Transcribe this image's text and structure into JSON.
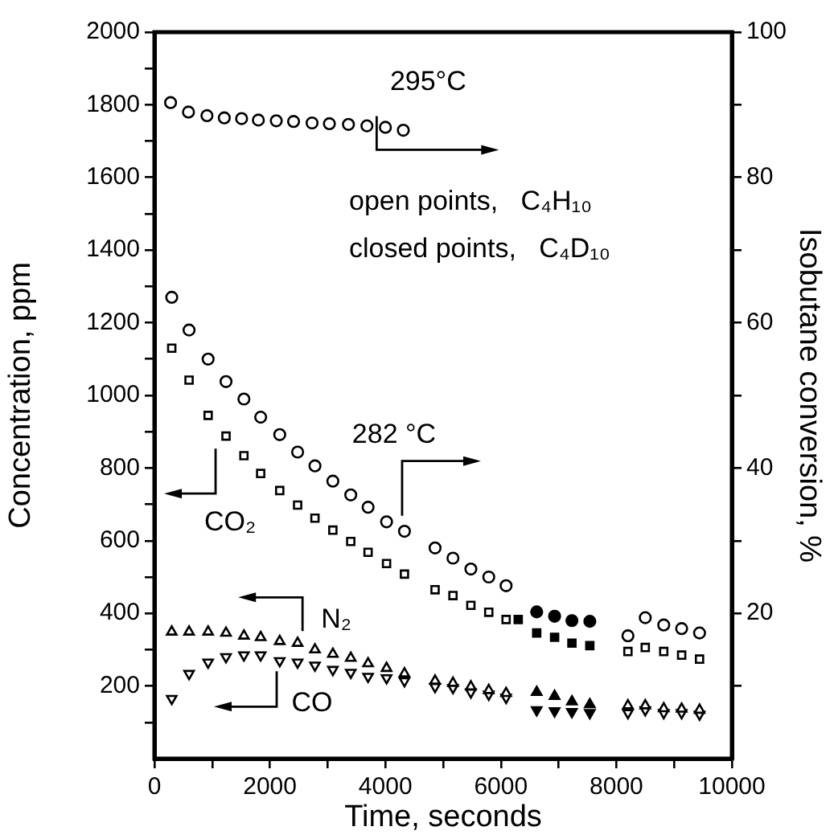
{
  "chart_data": {
    "type": "scatter",
    "xlabel": "Time, seconds",
    "ylabel": "Concentration, ppm",
    "y2label": "Isobutane conversion, %",
    "xlim": [
      0,
      10000
    ],
    "xticks": [
      0,
      {
        "value": 1000,
        "label": null
      },
      2000,
      {
        "value": 3000,
        "label": null
      },
      4000,
      {
        "value": 5000,
        "label": null
      },
      6000,
      {
        "value": 7000,
        "label": null
      },
      8000,
      {
        "value": 9000,
        "label": null
      },
      10000
    ],
    "ylim": [
      0,
      2000
    ],
    "yticks": [
      {
        "value": 100,
        "label": null
      },
      200,
      {
        "value": 300,
        "label": null
      },
      400,
      {
        "value": 500,
        "label": null
      },
      600,
      {
        "value": 700,
        "label": null
      },
      800,
      {
        "value": 900,
        "label": null
      },
      1000,
      {
        "value": 1100,
        "label": null
      },
      1200,
      {
        "value": 1300,
        "label": null
      },
      1400,
      {
        "value": 1500,
        "label": null
      },
      1600,
      {
        "value": 1700,
        "label": null
      },
      1800,
      {
        "value": 1900,
        "label": null
      },
      2000
    ],
    "y2lim": [
      0,
      100
    ],
    "y2ticks": [
      {
        "value": 10,
        "label": null
      },
      20,
      {
        "value": 30,
        "label": null
      },
      40,
      {
        "value": 50,
        "label": null
      },
      60,
      {
        "value": 70,
        "label": null
      },
      80,
      {
        "value": 90,
        "label": null
      },
      100
    ],
    "grid": false,
    "legend": false,
    "series": [
      {
        "color": "#000000",
        "marker": "circle",
        "axis": "y2",
        "x": [
          280,
          590,
          910,
          1210,
          1510,
          1800,
          2110,
          2410,
          2730,
          3030,
          3360,
          3680,
          4000,
          4310
        ],
        "values": [
          90.3,
          89.0,
          88.5,
          88.2,
          88.1,
          87.9,
          87.8,
          87.7,
          87.5,
          87.4,
          87.3,
          87.1,
          86.9,
          86.5
        ]
      },
      {
        "color": "#000000",
        "marker": "circle",
        "axis": "y2",
        "x": [
          300,
          600,
          930,
          1240,
          1550,
          1840,
          2170,
          2480,
          2780,
          3090,
          3400,
          3700,
          4020,
          4330,
          4860,
          5170,
          5480,
          5790,
          6090,
          8200,
          8500,
          8820,
          9130,
          9440
        ],
        "values": [
          63.5,
          59,
          55,
          51.9,
          49.5,
          47,
          44.6,
          42.2,
          40.3,
          38.2,
          36.3,
          34.6,
          32.6,
          31.3,
          29,
          27.6,
          26.1,
          25,
          23.8,
          16.9,
          19.4,
          18.4,
          17.9,
          17.3
        ]
      },
      {
        "color": "#000000",
        "marker": "circle",
        "axis": "y2",
        "x": [
          6620,
          6930,
          7230,
          7540
        ],
        "values": [
          20.2,
          19.6,
          19,
          18.9
        ]
      },
      {
        "color": "#000000",
        "marker": "square",
        "x": [
          300,
          600,
          930,
          1240,
          1550,
          1840,
          2170,
          2480,
          2780,
          3090,
          3400,
          3700,
          4020,
          4330,
          4860,
          5170,
          5480,
          5790,
          6090,
          8200,
          8500,
          8820,
          9130,
          9440
        ],
        "values": [
          1130,
          1042,
          945,
          888,
          834,
          785,
          738,
          698,
          662,
          629,
          598,
          568,
          537,
          508,
          465,
          449,
          422,
          403,
          383,
          295,
          306,
          295,
          285,
          274
        ]
      },
      {
        "color": "#000000",
        "marker": "square",
        "x": [
          6300,
          6620,
          6930,
          7230,
          7540
        ],
        "values": [
          383,
          346,
          334,
          318,
          311
        ]
      },
      {
        "color": "#000000",
        "marker": "triangle",
        "x": [
          300,
          600,
          930,
          1240,
          1550,
          1840,
          2170,
          2480,
          2780,
          3090,
          3400,
          3700,
          4020,
          4330,
          4860,
          5170,
          5480,
          5790,
          6090,
          8200,
          8500,
          8820,
          9130,
          9440
        ],
        "values": [
          349,
          349,
          349,
          346,
          338,
          334,
          323,
          318,
          300,
          288,
          277,
          262,
          249,
          234,
          214,
          208,
          198,
          188,
          180,
          146,
          146,
          138,
          137,
          134
        ]
      },
      {
        "color": "#000000",
        "marker": "triangle",
        "x": [
          6620,
          6930,
          7230,
          7540
        ],
        "values": [
          183,
          172,
          157,
          149
        ]
      },
      {
        "color": "#000000",
        "marker": "triangle-down",
        "x": [
          300,
          600,
          930,
          1240,
          1550,
          1840,
          2170,
          2480,
          2780,
          3090,
          3400,
          3700,
          4020,
          4330,
          4860,
          5170,
          5480,
          5790,
          6090,
          8200,
          8500,
          8820,
          9130,
          9440
        ],
        "values": [
          165,
          234,
          265,
          280,
          285,
          285,
          269,
          265,
          257,
          245,
          237,
          226,
          222,
          214,
          198,
          195,
          183,
          177,
          168,
          126,
          134,
          126,
          126,
          122
        ]
      },
      {
        "color": "#000000",
        "marker": "triangle-down",
        "x": [
          6620,
          6930,
          7230,
          7540
        ],
        "values": [
          134,
          131,
          129,
          126
        ]
      }
    ],
    "annotations": [
      "295°C",
      "282 °C",
      "CO₂",
      "N₂",
      "CO",
      "open points,   C₄H₁₀",
      "closed points,   C₄D₁₀"
    ]
  }
}
